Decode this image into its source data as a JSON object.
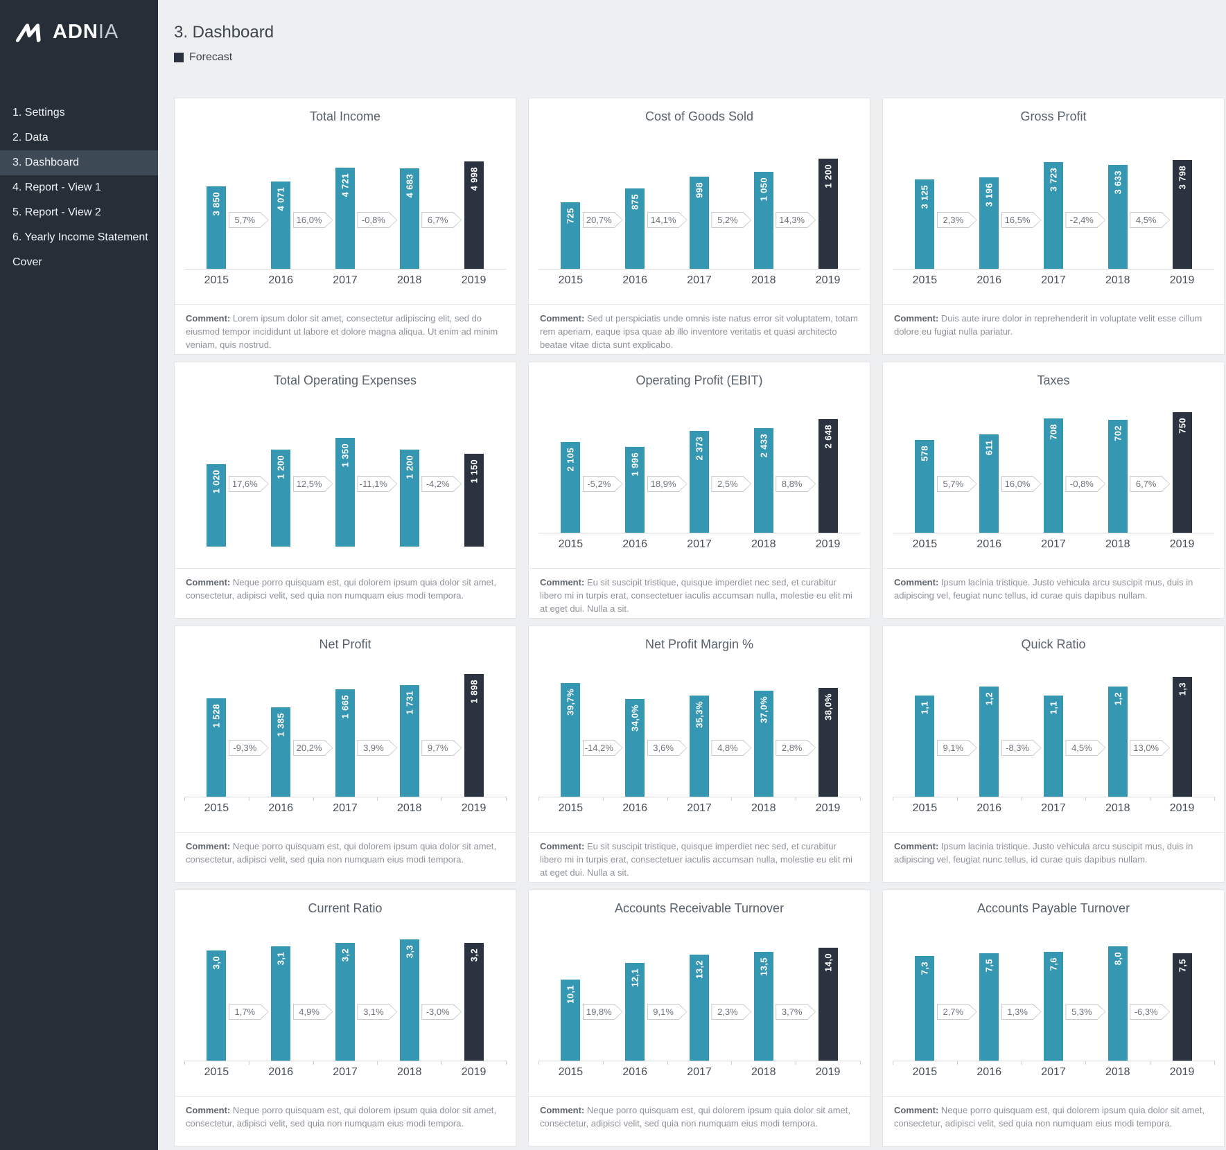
{
  "colors": {
    "bar": "#3697b2",
    "forecast": "#2a333f",
    "sidebar_bg": "#262e38",
    "sidebar_active_bg": "#3d4955",
    "page_bg": "#eeeff0"
  },
  "sidebar": {
    "logo_bold": "ADN",
    "logo_light": "IA",
    "items": [
      {
        "label": "1. Settings",
        "active": false
      },
      {
        "label": "2. Data",
        "active": false
      },
      {
        "label": "3. Dashboard",
        "active": true
      },
      {
        "label": "4. Report - View 1",
        "active": false
      },
      {
        "label": "5. Report - View 2",
        "active": false
      },
      {
        "label": "6. Yearly Income Statement",
        "active": false
      },
      {
        "label": "Cover",
        "active": false
      }
    ]
  },
  "header": {
    "title": "3. Dashboard",
    "legend_label": "Forecast"
  },
  "labels": {
    "comment_label": "Comment:"
  },
  "chart_data": [
    {
      "type": "bar",
      "title": "Total Income",
      "categories": [
        "2015",
        "2016",
        "2017",
        "2018",
        "2019"
      ],
      "values": [
        3850,
        4071,
        4721,
        4683,
        4998
      ],
      "value_labels": [
        "3 850",
        "4 071",
        "4 721",
        "4 683",
        "4 998"
      ],
      "change_labels": [
        "5,7%",
        "16,0%",
        "-0,8%",
        "6,7%"
      ],
      "forecast_index": 4,
      "ylim": [
        0,
        6000
      ],
      "show_axis": true,
      "ticks": false,
      "legend_position": "none",
      "comment": "Lorem ipsum dolor sit amet, consectetur adipiscing elit, sed do eiusmod tempor incididunt ut labore et dolore magna aliqua. Ut enim ad minim veniam, quis nostrud."
    },
    {
      "type": "bar",
      "title": "Cost of Goods Sold",
      "categories": [
        "2015",
        "2016",
        "2017",
        "2018",
        "2019"
      ],
      "values": [
        725,
        875,
        998,
        1050,
        1200
      ],
      "value_labels": [
        "725",
        "875",
        "998",
        "1 050",
        "1 200"
      ],
      "change_labels": [
        "20,7%",
        "14,1%",
        "5,2%",
        "14,3%"
      ],
      "forecast_index": 4,
      "ylim": [
        0,
        1400
      ],
      "show_axis": true,
      "ticks": false,
      "legend_position": "none",
      "comment": "Sed ut perspiciatis unde omnis iste natus error sit voluptatem, totam rem aperiam, eaque ipsa quae ab illo inventore veritatis et quasi architecto beatae vitae dicta sunt explicabo."
    },
    {
      "type": "bar",
      "title": "Gross Profit",
      "categories": [
        "2015",
        "2016",
        "2017",
        "2018",
        "2019"
      ],
      "values": [
        3125,
        3196,
        3723,
        3633,
        3798
      ],
      "value_labels": [
        "3 125",
        "3 196",
        "3 723",
        "3 633",
        "3 798"
      ],
      "change_labels": [
        "2,3%",
        "16,5%",
        "-2,4%",
        "4,5%"
      ],
      "forecast_index": 4,
      "ylim": [
        0,
        4500
      ],
      "show_axis": true,
      "ticks": false,
      "legend_position": "none",
      "comment": "Duis aute irure dolor in reprehenderit in voluptate velit esse cillum dolore eu fugiat nulla pariatur."
    },
    {
      "type": "bar",
      "title": "Total Operating Expenses",
      "categories": [
        "2015",
        "2016",
        "2017",
        "2018",
        "2019"
      ],
      "values": [
        1020,
        1200,
        1350,
        1200,
        1150
      ],
      "value_labels": [
        "1 020",
        "1 200",
        "1 350",
        "1 200",
        "1 150"
      ],
      "change_labels": [
        "17,6%",
        "12,5%",
        "-11,1%",
        "-4,2%"
      ],
      "forecast_index": 4,
      "ylim": [
        0,
        1600
      ],
      "show_axis": false,
      "ticks": false,
      "legend_position": "none",
      "comment": "Neque porro quisquam est, qui dolorem ipsum quia dolor sit amet, consectetur, adipisci velit, sed quia non numquam eius modi tempora."
    },
    {
      "type": "bar",
      "title": "Operating Profit (EBIT)",
      "categories": [
        "2015",
        "2016",
        "2017",
        "2018",
        "2019"
      ],
      "values": [
        2105,
        1996,
        2373,
        2433,
        2648
      ],
      "value_labels": [
        "2 105",
        "1 996",
        "2 373",
        "2 433",
        "2 648"
      ],
      "change_labels": [
        "-5,2%",
        "18,9%",
        "2,5%",
        "8,8%"
      ],
      "forecast_index": 4,
      "ylim": [
        0,
        3000
      ],
      "show_axis": true,
      "ticks": false,
      "legend_position": "none",
      "comment": "Eu sit suscipit tristique, quisque imperdiet nec sed, et curabitur libero mi in turpis erat, consectetuer iaculis accumsan nulla, molestie eu elit mi at eget dui. Nulla a sit."
    },
    {
      "type": "bar",
      "title": "Taxes",
      "categories": [
        "2015",
        "2016",
        "2017",
        "2018",
        "2019"
      ],
      "values": [
        578,
        611,
        708,
        702,
        750
      ],
      "value_labels": [
        "578",
        "611",
        "708",
        "702",
        "750"
      ],
      "change_labels": [
        "5,7%",
        "16,0%",
        "-0,8%",
        "6,7%"
      ],
      "forecast_index": 4,
      "ylim": [
        0,
        800
      ],
      "show_axis": true,
      "ticks": false,
      "legend_position": "none",
      "comment": "Ipsum lacinia tristique. Justo vehicula arcu suscipit mus, duis in adipiscing vel, feugiat nunc tellus, id curae quis dapibus nullam."
    },
    {
      "type": "bar",
      "title": "Net Profit",
      "categories": [
        "2015",
        "2016",
        "2017",
        "2018",
        "2019"
      ],
      "values": [
        1528,
        1385,
        1665,
        1731,
        1898
      ],
      "value_labels": [
        "1 528",
        "1 385",
        "1 665",
        "1 731",
        "1 898"
      ],
      "change_labels": [
        "-9,3%",
        "20,2%",
        "3,9%",
        "9,7%"
      ],
      "forecast_index": 4,
      "ylim": [
        0,
        2000
      ],
      "show_axis": true,
      "ticks": true,
      "legend_position": "none",
      "comment": "Neque porro quisquam est, qui dolorem ipsum quia dolor sit amet, consectetur, adipisci velit, sed quia non numquam eius modi tempora."
    },
    {
      "type": "bar",
      "title": "Net Profit Margin %",
      "categories": [
        "2015",
        "2016",
        "2017",
        "2018",
        "2019"
      ],
      "values": [
        39.7,
        34.0,
        35.3,
        37.0,
        38.0
      ],
      "value_labels": [
        "39,7%",
        "34,0%",
        "35,3%",
        "37,0%",
        "38,0%"
      ],
      "change_labels": [
        "-14,2%",
        "3,6%",
        "4,8%",
        "2,8%"
      ],
      "forecast_index": 4,
      "ylim": [
        0,
        45
      ],
      "show_axis": true,
      "ticks": true,
      "legend_position": "none",
      "comment": "Eu sit suscipit tristique, quisque imperdiet nec sed, et curabitur libero mi in turpis erat, consectetuer iaculis accumsan nulla, molestie eu elit mi at eget dui. Nulla a sit."
    },
    {
      "type": "bar",
      "title": "Quick Ratio",
      "categories": [
        "2015",
        "2016",
        "2017",
        "2018",
        "2019"
      ],
      "values": [
        1.1,
        1.2,
        1.1,
        1.2,
        1.3
      ],
      "value_labels": [
        "1,1",
        "1,2",
        "1,1",
        "1,2",
        "1,3"
      ],
      "change_labels": [
        "9,1%",
        "-8,3%",
        "4,5%",
        "13,0%"
      ],
      "forecast_index": 4,
      "ylim": [
        0,
        1.4
      ],
      "show_axis": true,
      "ticks": true,
      "legend_position": "none",
      "comment": "Ipsum lacinia tristique. Justo vehicula arcu suscipit mus, duis in adipiscing vel, feugiat nunc tellus, id curae quis dapibus nullam."
    },
    {
      "type": "bar",
      "title": "Current Ratio",
      "categories": [
        "2015",
        "2016",
        "2017",
        "2018",
        "2019"
      ],
      "values": [
        3.0,
        3.1,
        3.2,
        3.3,
        3.2
      ],
      "value_labels": [
        "3,0",
        "3,1",
        "3,2",
        "3,3",
        "3,2"
      ],
      "change_labels": [
        "1,7%",
        "4,9%",
        "3,1%",
        "-3,0%"
      ],
      "forecast_index": 4,
      "ylim": [
        0,
        3.5
      ],
      "show_axis": true,
      "ticks": true,
      "legend_position": "none",
      "comment": "Neque porro quisquam est, qui dolorem ipsum quia dolor sit amet, consectetur, adipisci velit, sed quia non numquam eius modi tempora."
    },
    {
      "type": "bar",
      "title": "Accounts Receivable Turnover",
      "categories": [
        "2015",
        "2016",
        "2017",
        "2018",
        "2019"
      ],
      "values": [
        10.1,
        12.1,
        13.2,
        13.5,
        14.0
      ],
      "value_labels": [
        "10,1",
        "12,1",
        "13,2",
        "13,5",
        "14,0"
      ],
      "change_labels": [
        "19,8%",
        "9,1%",
        "2,3%",
        "3,7%"
      ],
      "forecast_index": 4,
      "ylim": [
        0,
        16
      ],
      "show_axis": true,
      "ticks": true,
      "legend_position": "none",
      "comment": "Neque porro quisquam est, qui dolorem ipsum quia dolor sit amet, consectetur, adipisci velit, sed quia non numquam eius modi tempora."
    },
    {
      "type": "bar",
      "title": "Accounts Payable Turnover",
      "categories": [
        "2015",
        "2016",
        "2017",
        "2018",
        "2019"
      ],
      "values": [
        7.3,
        7.5,
        7.6,
        8.0,
        7.5
      ],
      "value_labels": [
        "7,3",
        "7,5",
        "7,6",
        "8,0",
        "7,5"
      ],
      "change_labels": [
        "2,7%",
        "1,3%",
        "5,3%",
        "-6,3%"
      ],
      "forecast_index": 4,
      "ylim": [
        0,
        9
      ],
      "show_axis": true,
      "ticks": true,
      "legend_position": "none",
      "comment": "Neque porro quisquam est, qui dolorem ipsum quia dolor sit amet, consectetur, adipisci velit, sed quia non numquam eius modi tempora."
    }
  ]
}
